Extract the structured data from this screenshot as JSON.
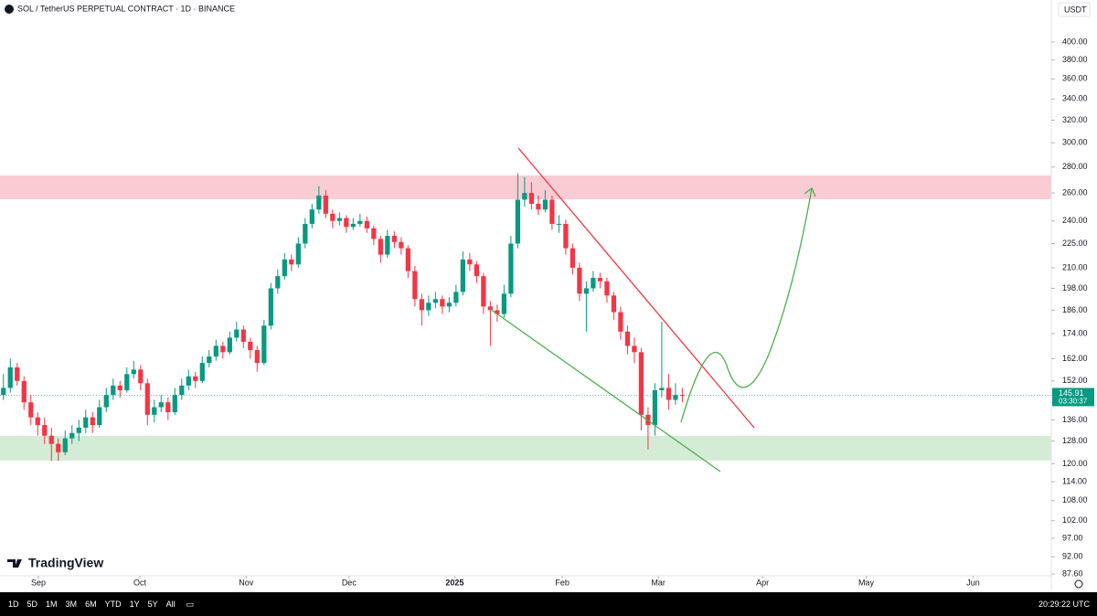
{
  "chart_data": {
    "type": "candlestick",
    "title": "SOL / TetherUS PERPETUAL CONTRACT · 1D · BINANCE",
    "currency": "USDT",
    "countdown": "03:30:37",
    "log_scale": true,
    "up_color": "#089981",
    "down_color": "#f23645",
    "xlim": [
      0,
      153.3
    ],
    "xticks": [
      {
        "value": 5.6,
        "label": "Sep"
      },
      {
        "value": 20.4,
        "label": "Oct"
      },
      {
        "value": 35.9,
        "label": "Nov"
      },
      {
        "value": 50.9,
        "label": "Dec"
      },
      {
        "value": 66.3,
        "label": "2025"
      },
      {
        "value": 82,
        "label": "Feb"
      },
      {
        "value": 96,
        "label": "Mar"
      },
      {
        "value": 111.2,
        "label": "Apr"
      },
      {
        "value": 126.3,
        "label": "May"
      },
      {
        "value": 141.9,
        "label": "Jun"
      }
    ],
    "ylim": [
      87.6,
      451
    ],
    "yticks": [
      {
        "value": 400,
        "label": "400.00"
      },
      {
        "value": 380,
        "label": "380.00"
      },
      {
        "value": 360,
        "label": "360.00"
      },
      {
        "value": 340,
        "label": "340.00"
      },
      {
        "value": 320,
        "label": "320.00"
      },
      {
        "value": 300,
        "label": "300.00"
      },
      {
        "value": 280,
        "label": "280.00"
      },
      {
        "value": 260,
        "label": "260.00"
      },
      {
        "value": 240,
        "label": "240.00"
      },
      {
        "value": 225,
        "label": "225.00"
      },
      {
        "value": 210,
        "label": "210.00"
      },
      {
        "value": 198,
        "label": "198.00"
      },
      {
        "value": 186,
        "label": "186.00"
      },
      {
        "value": 174,
        "label": "174.00"
      },
      {
        "value": 162,
        "label": "162.00"
      },
      {
        "value": 152,
        "label": "152.00"
      },
      {
        "value": 136,
        "label": "136.00"
      },
      {
        "value": 128,
        "label": "128.00"
      },
      {
        "value": 120,
        "label": "120.00"
      },
      {
        "value": 114,
        "label": "114.00"
      },
      {
        "value": 108,
        "label": "108.00"
      },
      {
        "value": 102,
        "label": "102.00"
      },
      {
        "value": 97,
        "label": "97.00"
      },
      {
        "value": 92,
        "label": "92.00"
      },
      {
        "value": 87.6,
        "label": "87.60"
      }
    ],
    "ohlc": [
      [
        146,
        155,
        144,
        149
      ],
      [
        149,
        162,
        147,
        158
      ],
      [
        158,
        160,
        150,
        152
      ],
      [
        152,
        154,
        140,
        143
      ],
      [
        143,
        146,
        134,
        137
      ],
      [
        137,
        139,
        130,
        134
      ],
      [
        134,
        137,
        127,
        130
      ],
      [
        130,
        133,
        121,
        127
      ],
      [
        127,
        129,
        121,
        124
      ],
      [
        124,
        132,
        123,
        129
      ],
      [
        129,
        134,
        127,
        131
      ],
      [
        131,
        136,
        128,
        133
      ],
      [
        133,
        140,
        131,
        137
      ],
      [
        137,
        139,
        131,
        134
      ],
      [
        134,
        144,
        133,
        141
      ],
      [
        141,
        149,
        139,
        146
      ],
      [
        146,
        153,
        144,
        150
      ],
      [
        150,
        152,
        145,
        148
      ],
      [
        148,
        158,
        147,
        155
      ],
      [
        155,
        161,
        153,
        157
      ],
      [
        157,
        159,
        148,
        151
      ],
      [
        151,
        153,
        134,
        138
      ],
      [
        138,
        144,
        135,
        141
      ],
      [
        141,
        146,
        139,
        143
      ],
      [
        143,
        145,
        136,
        139
      ],
      [
        139,
        149,
        138,
        146
      ],
      [
        146,
        153,
        144,
        150
      ],
      [
        150,
        157,
        148,
        154
      ],
      [
        154,
        156,
        149,
        152
      ],
      [
        152,
        163,
        151,
        160
      ],
      [
        160,
        166,
        158,
        163
      ],
      [
        163,
        171,
        161,
        168
      ],
      [
        168,
        170,
        162,
        165
      ],
      [
        165,
        175,
        164,
        172
      ],
      [
        172,
        180,
        170,
        176
      ],
      [
        176,
        178,
        167,
        170
      ],
      [
        170,
        172,
        162,
        166
      ],
      [
        166,
        168,
        156,
        160
      ],
      [
        160,
        181,
        159,
        178
      ],
      [
        178,
        201,
        176,
        198
      ],
      [
        198,
        209,
        195,
        205
      ],
      [
        205,
        219,
        203,
        215
      ],
      [
        215,
        218,
        208,
        212
      ],
      [
        212,
        229,
        210,
        225
      ],
      [
        225,
        242,
        222,
        238
      ],
      [
        238,
        252,
        235,
        248
      ],
      [
        248,
        265,
        245,
        258
      ],
      [
        258,
        262,
        242,
        245
      ],
      [
        245,
        248,
        235,
        240
      ],
      [
        240,
        246,
        237,
        242
      ],
      [
        242,
        244,
        232,
        236
      ],
      [
        236,
        242,
        234,
        238
      ],
      [
        238,
        245,
        236,
        240
      ],
      [
        240,
        243,
        232,
        235
      ],
      [
        235,
        237,
        224,
        228
      ],
      [
        228,
        230,
        213,
        218
      ],
      [
        218,
        234,
        216,
        230
      ],
      [
        230,
        233,
        222,
        226
      ],
      [
        226,
        229,
        218,
        222
      ],
      [
        222,
        224,
        204,
        208
      ],
      [
        208,
        211,
        188,
        192
      ],
      [
        192,
        195,
        178,
        186
      ],
      [
        186,
        194,
        183,
        190
      ],
      [
        190,
        196,
        187,
        192
      ],
      [
        192,
        194,
        184,
        188
      ],
      [
        188,
        193,
        185,
        190
      ],
      [
        190,
        200,
        188,
        196
      ],
      [
        196,
        220,
        194,
        215
      ],
      [
        215,
        219,
        208,
        212
      ],
      [
        212,
        214,
        201,
        205
      ],
      [
        205,
        207,
        184,
        188
      ],
      [
        188,
        191,
        168,
        186
      ],
      [
        186,
        189,
        180,
        184
      ],
      [
        184,
        200,
        182,
        195
      ],
      [
        195,
        230,
        193,
        225
      ],
      [
        225,
        275,
        222,
        255
      ],
      [
        255,
        272,
        250,
        260
      ],
      [
        260,
        268,
        248,
        252
      ],
      [
        252,
        258,
        244,
        248
      ],
      [
        248,
        262,
        246,
        255
      ],
      [
        255,
        258,
        234,
        238
      ],
      [
        238,
        244,
        232,
        238
      ],
      [
        238,
        241,
        218,
        222
      ],
      [
        222,
        225,
        206,
        210
      ],
      [
        210,
        213,
        191,
        195
      ],
      [
        195,
        202,
        175,
        198
      ],
      [
        198,
        208,
        196,
        204
      ],
      [
        204,
        207,
        198,
        202
      ],
      [
        202,
        204,
        190,
        194
      ],
      [
        194,
        196,
        181,
        185
      ],
      [
        185,
        188,
        171,
        175
      ],
      [
        175,
        178,
        164,
        168
      ],
      [
        168,
        172,
        160,
        165
      ],
      [
        165,
        167,
        132,
        138
      ],
      [
        138,
        141,
        125,
        134
      ],
      [
        134,
        151,
        130,
        148
      ],
      [
        148,
        180,
        145,
        149
      ],
      [
        149,
        155,
        140,
        144
      ],
      [
        144,
        151,
        142,
        146
      ],
      [
        146,
        149,
        143,
        145.91
      ]
    ]
  },
  "watermark": "TradingView",
  "toolbar": {
    "ranges": [
      "1D",
      "5D",
      "1M",
      "3M",
      "6M",
      "YTD",
      "1Y",
      "5Y",
      "All"
    ],
    "clock": "20:29:22 UTC"
  }
}
